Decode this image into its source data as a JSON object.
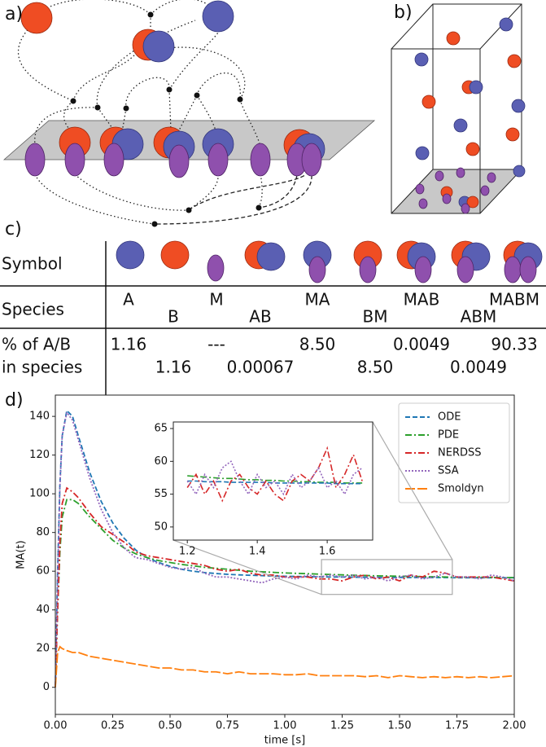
{
  "labels": [
    "a)",
    "b)",
    "c)",
    "d)"
  ],
  "table": {
    "row_labels": {
      "symbol": "Symbol",
      "species": "Species",
      "percent": [
        "% of A/B",
        "in species"
      ]
    },
    "columns": [
      {
        "species": "A",
        "percent": "1.16"
      },
      {
        "species": "B",
        "percent": "1.16"
      },
      {
        "species": "M",
        "percent": "---"
      },
      {
        "species": "AB",
        "percent": "0.00067"
      },
      {
        "species": "MA",
        "percent": "8.50"
      },
      {
        "species": "BM",
        "percent": "8.50"
      },
      {
        "species": "MAB",
        "percent": "0.0049"
      },
      {
        "species": "ABM",
        "percent": "0.0049"
      },
      {
        "species": "MABM",
        "percent": "90.33"
      }
    ]
  },
  "chart_data": [
    {
      "type": "line",
      "xlabel": "time [s]",
      "ylabel": "MA(t)",
      "x": [
        0,
        0.01,
        0.02,
        0.03,
        0.05,
        0.075,
        0.1,
        0.15,
        0.2,
        0.25,
        0.3,
        0.35,
        0.4,
        0.45,
        0.5,
        0.55,
        0.6,
        0.65,
        0.7,
        0.75,
        0.8,
        0.85,
        0.9,
        0.95,
        1.0,
        1.05,
        1.1,
        1.15,
        1.2,
        1.25,
        1.3,
        1.35,
        1.4,
        1.45,
        1.5,
        1.55,
        1.6,
        1.65,
        1.7,
        1.75,
        1.8,
        1.85,
        1.9,
        1.95,
        2.0
      ],
      "series": [
        {
          "name": "ODE",
          "color": "#1f77b4",
          "linestyle": "dashed",
          "values": [
            0,
            60,
            105,
            130,
            143,
            140,
            130,
            111,
            96,
            85,
            77,
            71,
            67,
            64.5,
            62.5,
            61,
            60,
            59.3,
            58.8,
            58.4,
            58.1,
            57.9,
            57.7,
            57.5,
            57.4,
            57.3,
            57.2,
            57.1,
            57,
            57,
            56.9,
            56.9,
            56.8,
            56.8,
            56.8,
            56.7,
            56.7,
            56.7,
            56.7,
            56.6,
            56.6,
            56.6,
            56.6,
            56.6,
            56.6
          ]
        },
        {
          "name": "PDE",
          "color": "#2ca02c",
          "linestyle": "dashdot",
          "values": [
            0,
            40,
            70,
            88,
            97,
            97,
            95,
            88,
            82,
            76,
            72,
            69,
            67,
            65.5,
            64.5,
            63.5,
            62.8,
            62,
            61.5,
            61,
            60.5,
            60,
            59.7,
            59.4,
            59.1,
            58.9,
            58.7,
            58.5,
            58.3,
            58.1,
            57.9,
            57.8,
            57.6,
            57.5,
            57.4,
            57.3,
            57.2,
            57.1,
            57,
            56.9,
            56.9,
            56.8,
            56.8,
            56.7,
            56.7
          ]
        },
        {
          "name": "NERDSS",
          "color": "#d62728",
          "linestyle": "dashdot",
          "values": [
            0,
            40,
            75,
            95,
            103,
            101,
            98,
            90,
            83,
            79,
            75,
            70,
            68,
            67,
            66,
            65,
            64,
            63,
            61,
            60,
            61,
            59,
            58,
            58,
            57,
            57,
            57,
            56,
            56,
            55,
            57,
            58,
            56,
            57,
            55,
            58,
            57,
            60,
            59,
            57,
            57,
            57,
            57,
            56,
            55
          ]
        },
        {
          "name": "SSA",
          "color": "#9467bd",
          "linestyle": "dotted",
          "values": [
            0,
            58,
            104,
            130,
            142,
            138,
            128,
            108,
            92,
            80,
            72,
            67,
            66,
            64,
            62,
            61,
            62,
            59,
            57,
            57,
            56,
            55,
            54,
            56,
            57,
            56,
            58,
            57,
            58,
            57,
            58,
            56,
            57,
            55,
            57,
            58,
            56,
            57,
            59,
            57,
            57,
            56,
            58,
            57,
            55
          ]
        },
        {
          "name": "Smoldyn",
          "color": "#ff7f0e",
          "linestyle": "longdash",
          "values": [
            0,
            18,
            21,
            20,
            19,
            18,
            18,
            16,
            15,
            14,
            13,
            12,
            11,
            10,
            10,
            9,
            9,
            8,
            8,
            7,
            8,
            7,
            7,
            7,
            6.5,
            6.5,
            7,
            6,
            6,
            6,
            6,
            5.5,
            6,
            5,
            6,
            5.5,
            5,
            5.5,
            5,
            5.5,
            5,
            5.5,
            5,
            5.5,
            6
          ]
        }
      ],
      "xlim": [
        0,
        2
      ],
      "xticks": [
        {
          "value": 0,
          "label": "0.00"
        },
        {
          "value": 0.25,
          "label": "0.25"
        },
        {
          "value": 0.5,
          "label": "0.50"
        },
        {
          "value": 0.75,
          "label": "0.75"
        },
        {
          "value": 1,
          "label": "1.00"
        },
        {
          "value": 1.25,
          "label": "1.25"
        },
        {
          "value": 1.5,
          "label": "1.50"
        },
        {
          "value": 1.75,
          "label": "1.75"
        },
        {
          "value": 2,
          "label": "2.00"
        }
      ],
      "ylim": [
        -14,
        151
      ],
      "yticks": [
        0,
        20,
        40,
        60,
        80,
        100,
        120,
        140
      ],
      "legend": "upper right"
    },
    {
      "type": "line",
      "x": [
        1.2,
        1.225,
        1.25,
        1.275,
        1.3,
        1.325,
        1.35,
        1.375,
        1.4,
        1.425,
        1.45,
        1.475,
        1.5,
        1.525,
        1.55,
        1.575,
        1.6,
        1.625,
        1.65,
        1.675,
        1.7
      ],
      "series": [
        {
          "color": "#2ca02c",
          "linestyle": "dashdot",
          "values": [
            57.8,
            57.7,
            57.6,
            57.5,
            57.4,
            57.4,
            57.3,
            57.2,
            57.2,
            57.1,
            57.1,
            57,
            57,
            56.9,
            56.9,
            56.8,
            56.8,
            56.8,
            56.7,
            56.7,
            56.7
          ]
        },
        {
          "color": "#1f77b4",
          "linestyle": "dashed",
          "values": [
            57,
            57,
            56.9,
            56.9,
            56.9,
            56.8,
            56.8,
            56.8,
            56.8,
            56.8,
            56.7,
            56.7,
            56.7,
            56.7,
            56.7,
            56.7,
            56.7,
            56.6,
            56.6,
            56.6,
            56.6
          ]
        },
        {
          "color": "#d62728",
          "linestyle": "dashdot",
          "values": [
            56,
            58,
            55,
            57,
            54,
            57,
            58,
            56,
            55,
            57,
            55,
            54,
            57,
            58,
            57,
            59,
            62,
            56,
            58,
            61,
            57
          ]
        },
        {
          "color": "#9467bd",
          "linestyle": "dotted",
          "values": [
            57,
            55,
            58,
            56,
            59,
            60,
            57,
            55,
            58,
            56,
            57,
            55,
            58,
            56,
            57,
            59,
            56,
            57,
            55,
            58,
            59
          ]
        }
      ],
      "xlim": [
        1.16,
        1.73
      ],
      "xticks": [
        1.2,
        1.4,
        1.6
      ],
      "ylim": [
        48,
        66
      ],
      "yticks": [
        50,
        55,
        60,
        65
      ]
    }
  ]
}
